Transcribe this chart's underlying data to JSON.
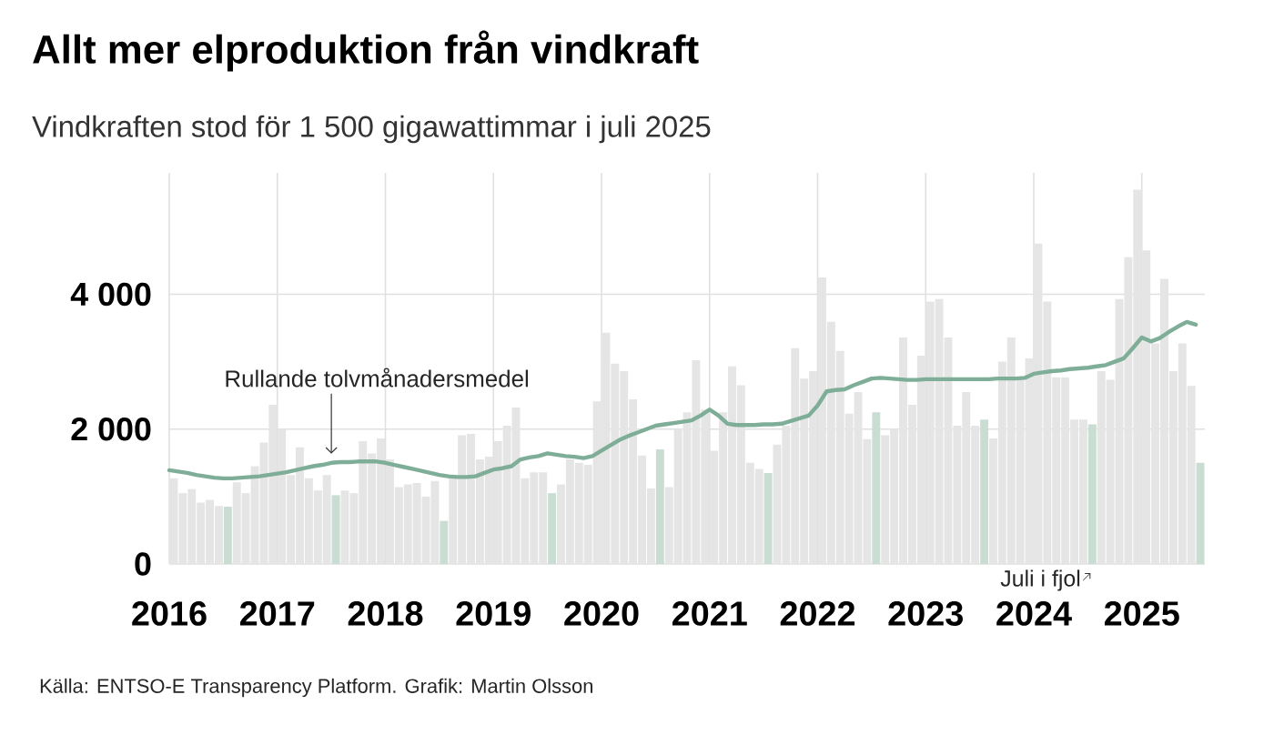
{
  "chart_data": {
    "type": "bar",
    "title": "Allt mer elproduktion från vindkraft",
    "subtitle": "Vindkraften stod för 1 500 gigawattimmar i juli 2025",
    "x": [
      "2016-01",
      "2016-02",
      "2016-03",
      "2016-04",
      "2016-05",
      "2016-06",
      "2016-07",
      "2016-08",
      "2016-09",
      "2016-10",
      "2016-11",
      "2016-12",
      "2017-01",
      "2017-02",
      "2017-03",
      "2017-04",
      "2017-05",
      "2017-06",
      "2017-07",
      "2017-08",
      "2017-09",
      "2017-10",
      "2017-11",
      "2017-12",
      "2018-01",
      "2018-02",
      "2018-03",
      "2018-04",
      "2018-05",
      "2018-06",
      "2018-07",
      "2018-08",
      "2018-09",
      "2018-10",
      "2018-11",
      "2018-12",
      "2019-01",
      "2019-02",
      "2019-03",
      "2019-04",
      "2019-05",
      "2019-06",
      "2019-07",
      "2019-08",
      "2019-09",
      "2019-10",
      "2019-11",
      "2019-12",
      "2020-01",
      "2020-02",
      "2020-03",
      "2020-04",
      "2020-05",
      "2020-06",
      "2020-07",
      "2020-08",
      "2020-09",
      "2020-10",
      "2020-11",
      "2020-12",
      "2021-01",
      "2021-02",
      "2021-03",
      "2021-04",
      "2021-05",
      "2021-06",
      "2021-07",
      "2021-08",
      "2021-09",
      "2021-10",
      "2021-11",
      "2021-12",
      "2022-01",
      "2022-02",
      "2022-03",
      "2022-04",
      "2022-05",
      "2022-06",
      "2022-07",
      "2022-08",
      "2022-09",
      "2022-10",
      "2022-11",
      "2022-12",
      "2023-01",
      "2023-02",
      "2023-03",
      "2023-04",
      "2023-05",
      "2023-06",
      "2023-07",
      "2023-08",
      "2023-09",
      "2023-10",
      "2023-11",
      "2023-12",
      "2024-01",
      "2024-02",
      "2024-03",
      "2024-04",
      "2024-05",
      "2024-06",
      "2024-07",
      "2024-08",
      "2024-09",
      "2024-10",
      "2024-11",
      "2024-12",
      "2025-01",
      "2025-02",
      "2025-03",
      "2025-04",
      "2025-05",
      "2025-06",
      "2025-07"
    ],
    "series": [
      {
        "colors": [
          "#e5e5e5",
          "#e5e5e5",
          "#e5e5e5",
          "#e5e5e5",
          "#e5e5e5",
          "#e5e5e5",
          "#c9ddd3",
          "#e5e5e5",
          "#e5e5e5",
          "#e5e5e5",
          "#e5e5e5",
          "#e5e5e5",
          "#e5e5e5",
          "#e5e5e5",
          "#e5e5e5",
          "#e5e5e5",
          "#e5e5e5",
          "#e5e5e5",
          "#c9ddd3",
          "#e5e5e5",
          "#e5e5e5",
          "#e5e5e5",
          "#e5e5e5",
          "#e5e5e5",
          "#e5e5e5",
          "#e5e5e5",
          "#e5e5e5",
          "#e5e5e5",
          "#e5e5e5",
          "#e5e5e5",
          "#c9ddd3",
          "#e5e5e5",
          "#e5e5e5",
          "#e5e5e5",
          "#e5e5e5",
          "#e5e5e5",
          "#e5e5e5",
          "#e5e5e5",
          "#e5e5e5",
          "#e5e5e5",
          "#e5e5e5",
          "#e5e5e5",
          "#c9ddd3",
          "#e5e5e5",
          "#e5e5e5",
          "#e5e5e5",
          "#e5e5e5",
          "#e5e5e5",
          "#e5e5e5",
          "#e5e5e5",
          "#e5e5e5",
          "#e5e5e5",
          "#e5e5e5",
          "#e5e5e5",
          "#c9ddd3",
          "#e5e5e5",
          "#e5e5e5",
          "#e5e5e5",
          "#e5e5e5",
          "#e5e5e5",
          "#e5e5e5",
          "#e5e5e5",
          "#e5e5e5",
          "#e5e5e5",
          "#e5e5e5",
          "#e5e5e5",
          "#c9ddd3",
          "#e5e5e5",
          "#e5e5e5",
          "#e5e5e5",
          "#e5e5e5",
          "#e5e5e5",
          "#e5e5e5",
          "#e5e5e5",
          "#e5e5e5",
          "#e5e5e5",
          "#e5e5e5",
          "#e5e5e5",
          "#c9ddd3",
          "#e5e5e5",
          "#e5e5e5",
          "#e5e5e5",
          "#e5e5e5",
          "#e5e5e5",
          "#e5e5e5",
          "#e5e5e5",
          "#e5e5e5",
          "#e5e5e5",
          "#e5e5e5",
          "#e5e5e5",
          "#c9ddd3",
          "#e5e5e5",
          "#e5e5e5",
          "#e5e5e5",
          "#e5e5e5",
          "#e5e5e5",
          "#e5e5e5",
          "#e5e5e5",
          "#e5e5e5",
          "#e5e5e5",
          "#e5e5e5",
          "#e5e5e5",
          "#c9ddd3",
          "#e5e5e5",
          "#e5e5e5",
          "#e5e5e5",
          "#e5e5e5",
          "#e5e5e5",
          "#e5e5e5",
          "#e5e5e5",
          "#e5e5e5",
          "#e5e5e5",
          "#e5e5e5",
          "#e5e5e5",
          "#c9ddd3"
        ],
        "values": [
          1270,
          1050,
          1110,
          910,
          950,
          860,
          850,
          1210,
          1050,
          1450,
          1800,
          2360,
          2000,
          1320,
          1730,
          1270,
          1090,
          1320,
          1020,
          1090,
          1050,
          1820,
          1640,
          1860,
          1550,
          1140,
          1180,
          1200,
          1000,
          1230,
          640,
          1270,
          1910,
          1930,
          1550,
          1590,
          1820,
          2050,
          2320,
          1270,
          1360,
          1360,
          1050,
          1180,
          1550,
          1500,
          1470,
          2410,
          3430,
          2970,
          2860,
          2440,
          1610,
          1120,
          1700,
          1140,
          2000,
          2250,
          3020,
          2290,
          1680,
          2250,
          2930,
          2650,
          1500,
          1410,
          1350,
          1770,
          2050,
          3200,
          2750,
          2860,
          4250,
          3590,
          3160,
          2230,
          2550,
          1850,
          2250,
          1910,
          2000,
          3360,
          2360,
          3090,
          3890,
          3930,
          3360,
          2050,
          2550,
          2050,
          2140,
          1860,
          3000,
          3360,
          2770,
          3050,
          4750,
          3890,
          2770,
          2770,
          2140,
          2140,
          2070,
          2860,
          2730,
          3930,
          4550,
          5550,
          4650,
          3270,
          4230,
          2860,
          3270,
          2640,
          1500
        ]
      },
      {
        "type": "line",
        "color": "#7fae98",
        "values": [
          1390,
          1370,
          1350,
          1320,
          1300,
          1280,
          1270,
          1270,
          1280,
          1290,
          1300,
          1320,
          1340,
          1360,
          1390,
          1420,
          1450,
          1470,
          1500,
          1510,
          1510,
          1520,
          1520,
          1520,
          1500,
          1470,
          1440,
          1410,
          1380,
          1350,
          1320,
          1300,
          1290,
          1290,
          1300,
          1350,
          1400,
          1420,
          1450,
          1550,
          1580,
          1600,
          1640,
          1620,
          1600,
          1590,
          1570,
          1600,
          1680,
          1760,
          1840,
          1900,
          1950,
          2000,
          2050,
          2070,
          2090,
          2110,
          2130,
          2200,
          2290,
          2200,
          2080,
          2060,
          2060,
          2060,
          2070,
          2070,
          2080,
          2120,
          2160,
          2200,
          2350,
          2560,
          2580,
          2590,
          2650,
          2700,
          2750,
          2760,
          2750,
          2740,
          2730,
          2730,
          2740,
          2740,
          2740,
          2740,
          2740,
          2740,
          2740,
          2740,
          2750,
          2750,
          2750,
          2760,
          2820,
          2840,
          2860,
          2870,
          2890,
          2900,
          2910,
          2930,
          2950,
          3000,
          3050,
          3200,
          3360,
          3300,
          3350,
          3440,
          3520,
          3590,
          3550
        ]
      }
    ],
    "xlim": [
      "2016",
      "2025-08"
    ],
    "xticks": [
      "2016",
      "2017",
      "2018",
      "2019",
      "2020",
      "2021",
      "2022",
      "2023",
      "2024",
      "2025"
    ],
    "ylim": [
      0,
      5800
    ],
    "yticks": [
      0,
      {
        "value": 2000,
        "label": "2 000"
      },
      {
        "value": 4000,
        "label": "4 000"
      }
    ],
    "grid": true,
    "annotations": [
      {
        "text": "Rullande tolvmånadersmedel",
        "x": "2017-07",
        "y": 1500
      },
      {
        "text": "Juli i fjol",
        "x": "2024-07",
        "y": 0
      },
      "Källa: ENTSO-E Transparency Platform. Grafik: Martin Olsson"
    ]
  }
}
